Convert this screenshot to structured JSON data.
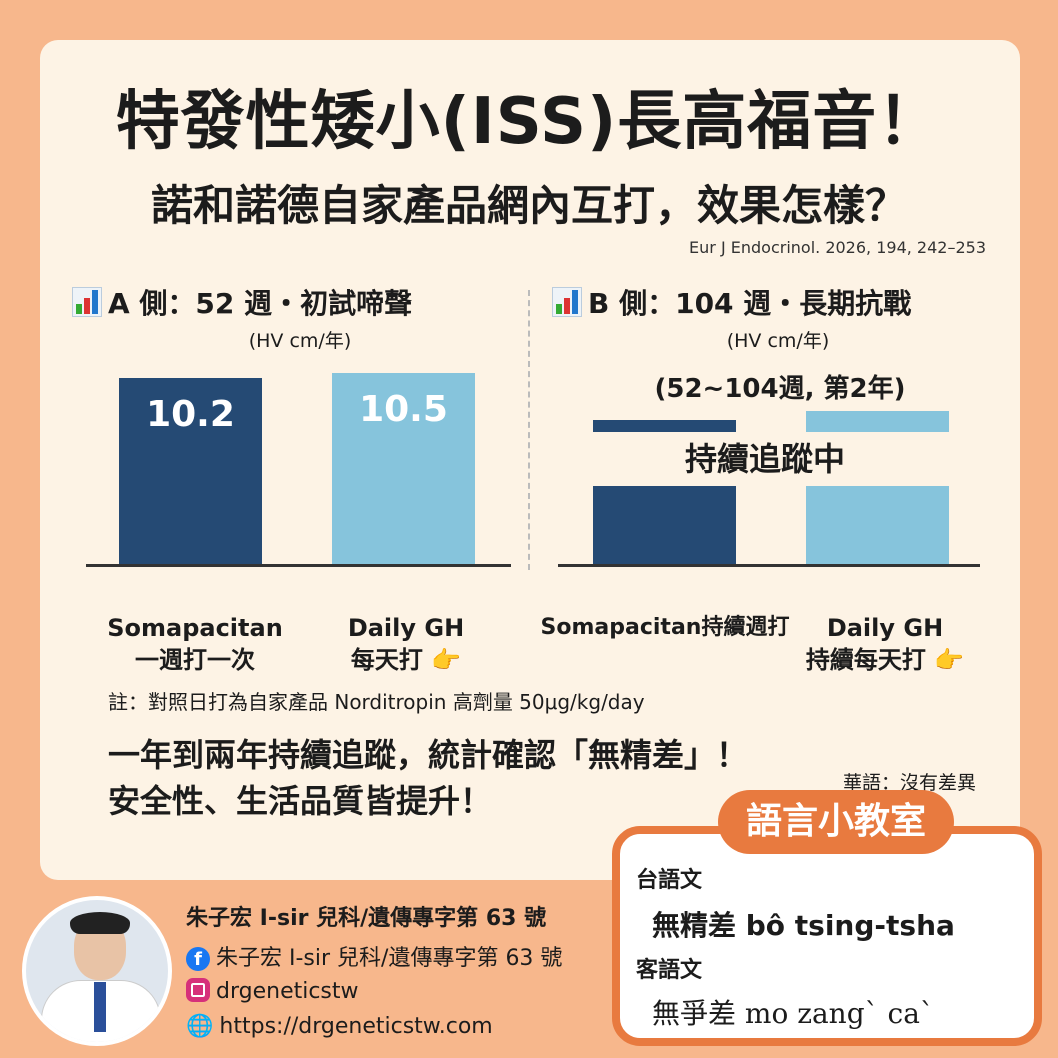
{
  "header": {
    "title": "特發性矮小(ISS)長高福音！",
    "subtitle": "諾和諾德自家產品網內互打，效果怎樣？",
    "citation": "Eur J Endocrinol. 2026, 194, 242–253"
  },
  "colors": {
    "somapacitan": "#254a74",
    "daily_gh": "#86c4dc",
    "accent": "#e87a3f",
    "background": "#f7b78c",
    "card": "#fdf3e5"
  },
  "chart_data": [
    {
      "type": "bar",
      "title": "A 側：52 週・初試啼聲",
      "ylabel": "(HV cm/年)",
      "categories": [
        "Somapacitan 一週打一次",
        "Daily GH 每天打"
      ],
      "values": [
        10.2,
        10.5
      ],
      "value_labels_shown": true
    },
    {
      "type": "bar",
      "title": "B 側：104 週・長期抗戰",
      "ylabel": "(HV cm/年)",
      "subtitle": "(52~104週, 第2年)",
      "categories": [
        "Somapacitan持續週打",
        "Daily GH 持續每天打"
      ],
      "values": [
        7.9,
        8.4
      ],
      "value_labels_shown": false,
      "overlay": "持續追蹤中"
    }
  ],
  "panelA": {
    "title": "A 側：52 週・初試啼聲",
    "unit": "(HV cm/年)",
    "bars": [
      {
        "value": "10.2"
      },
      {
        "value": "10.5"
      }
    ],
    "cat1": [
      "Somapacitan",
      "一週打一次"
    ],
    "cat2": [
      "Daily GH",
      "每天打 👉"
    ]
  },
  "panelB": {
    "title": "B 側：104 週・長期抗戰",
    "unit": "(HV cm/年)",
    "period": "(52~104週, 第2年)",
    "overlay": "持續追蹤中",
    "cat1": [
      "Somapacitan持續週打"
    ],
    "cat2": [
      "Daily GH",
      "持續每天打 👉"
    ]
  },
  "note": "註：對照日打為自家產品 Norditropin 高劑量 50μg/kg/day",
  "conclusion": [
    "一年到兩年持續追蹤，統計確認「無精差」！",
    "安全性、生活品質皆提升！"
  ],
  "mandarin": "華語：沒有差異",
  "lesson": {
    "badge": "語言小教室",
    "taiwanese_label": "台語文",
    "taiwanese": "無精差 bô tsing-tsha",
    "hakka_label": "客語文",
    "hakka": "無爭差 mo zang` ca`"
  },
  "footer": {
    "name": "朱子宏 I-sir 兒科/遺傳專字第 63 號",
    "facebook": "朱子宏 I-sir 兒科/遺傳專字第 63 號",
    "instagram": "drgeneticstw",
    "website": "https://drgeneticstw.com",
    "icons": [
      "facebook-icon",
      "instagram-icon",
      "globe-icon"
    ]
  }
}
